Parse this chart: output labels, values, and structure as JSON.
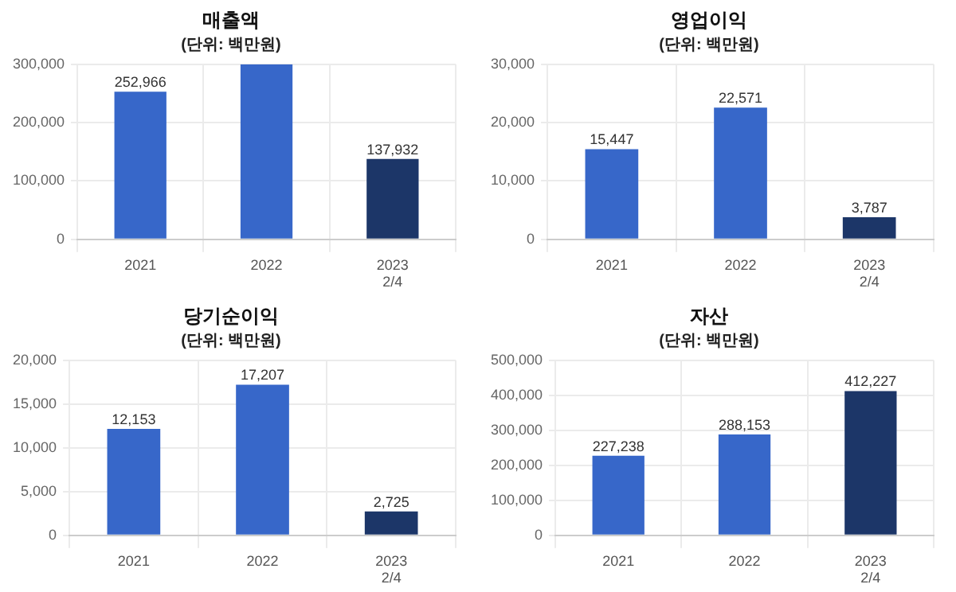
{
  "chart_data": [
    {
      "type": "bar",
      "title": "매출액",
      "subtitle": "(단위: 백만원)",
      "categories": [
        "2021",
        "2022",
        "2023\n2/4"
      ],
      "values": [
        252966,
        300000,
        137932
      ],
      "value_labels": [
        "252,966",
        null,
        "137,932"
      ],
      "colors": [
        "#3767c9",
        "#3767c9",
        "#1c3668"
      ],
      "ylim": [
        0,
        300000
      ],
      "yticks": [
        {
          "value": 0,
          "label": "0"
        },
        {
          "value": 100000,
          "label": "100,000"
        },
        {
          "value": 200000,
          "label": "200,000"
        },
        {
          "value": 300000,
          "label": "300,000"
        }
      ],
      "grid": true,
      "legend": false
    },
    {
      "type": "bar",
      "title": "영업이익",
      "subtitle": "(단위: 백만원)",
      "categories": [
        "2021",
        "2022",
        "2023\n2/4"
      ],
      "values": [
        15447,
        22571,
        3787
      ],
      "value_labels": [
        "15,447",
        "22,571",
        "3,787"
      ],
      "colors": [
        "#3767c9",
        "#3767c9",
        "#1c3668"
      ],
      "ylim": [
        0,
        30000
      ],
      "yticks": [
        {
          "value": 0,
          "label": "0"
        },
        {
          "value": 10000,
          "label": "10,000"
        },
        {
          "value": 20000,
          "label": "20,000"
        },
        {
          "value": 30000,
          "label": "30,000"
        }
      ],
      "grid": true,
      "legend": false
    },
    {
      "type": "bar",
      "title": "당기순이익",
      "subtitle": "(단위: 백만원)",
      "categories": [
        "2021",
        "2022",
        "2023\n2/4"
      ],
      "values": [
        12153,
        17207,
        2725
      ],
      "value_labels": [
        "12,153",
        "17,207",
        "2,725"
      ],
      "colors": [
        "#3767c9",
        "#3767c9",
        "#1c3668"
      ],
      "ylim": [
        0,
        20000
      ],
      "yticks": [
        {
          "value": 0,
          "label": "0"
        },
        {
          "value": 5000,
          "label": "5,000"
        },
        {
          "value": 10000,
          "label": "10,000"
        },
        {
          "value": 15000,
          "label": "15,000"
        },
        {
          "value": 20000,
          "label": "20,000"
        }
      ],
      "grid": true,
      "legend": false
    },
    {
      "type": "bar",
      "title": "자산",
      "subtitle": "(단위: 백만원)",
      "categories": [
        "2021",
        "2022",
        "2023\n2/4"
      ],
      "values": [
        227238,
        288153,
        412227
      ],
      "value_labels": [
        "227,238",
        "288,153",
        "412,227"
      ],
      "colors": [
        "#3767c9",
        "#3767c9",
        "#1c3668"
      ],
      "ylim": [
        0,
        500000
      ],
      "yticks": [
        {
          "value": 0,
          "label": "0"
        },
        {
          "value": 100000,
          "label": "100,000"
        },
        {
          "value": 200000,
          "label": "200,000"
        },
        {
          "value": 300000,
          "label": "300,000"
        },
        {
          "value": 400000,
          "label": "400,000"
        },
        {
          "value": 500000,
          "label": "500,000"
        }
      ],
      "grid": true,
      "legend": false
    }
  ]
}
